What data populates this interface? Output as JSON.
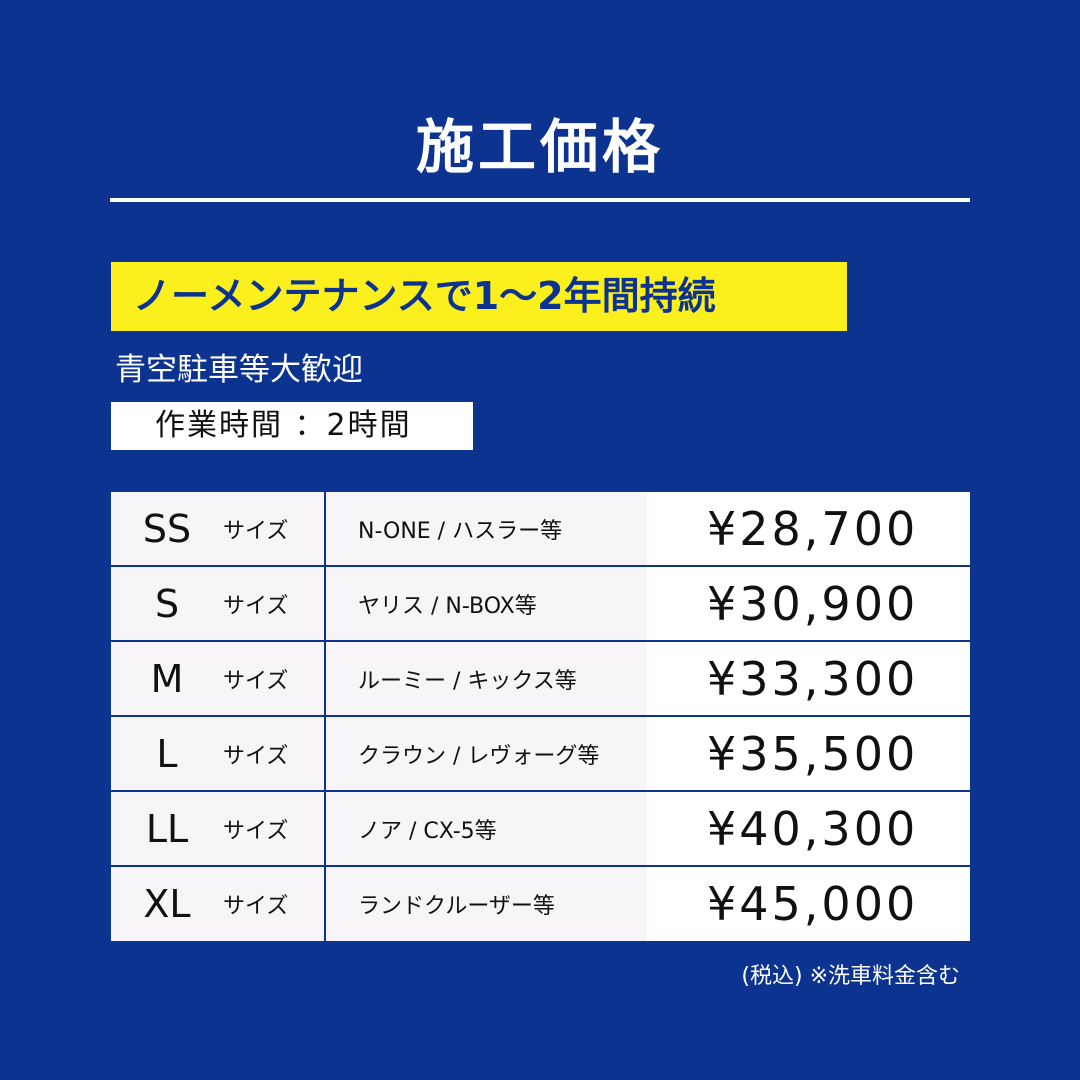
{
  "title": "施工価格",
  "banner": "ノーメンテナンスで1～2年間持続",
  "subtitle": "青空駐車等大歓迎",
  "work_time": "作業時間 ：2時間",
  "rows": [
    {
      "size": "SS",
      "label": "サイズ",
      "models": "N-ONE / ハスラー等",
      "price": "¥28,700"
    },
    {
      "size": "S",
      "label": "サイズ",
      "models": "ヤリス / N-BOX等",
      "price": "¥30,900"
    },
    {
      "size": "M",
      "label": "サイズ",
      "models": "ルーミー / キックス等",
      "price": "¥33,300"
    },
    {
      "size": "L",
      "label": "サイズ",
      "models": "クラウン / レヴォーグ等",
      "price": "¥35,500"
    },
    {
      "size": "LL",
      "label": "サイズ",
      "models": "ノア / CX-5等",
      "price": "¥40,300"
    },
    {
      "size": "XL",
      "label": "サイズ",
      "models": "ランドクルーザー等",
      "price": "¥45,000"
    }
  ],
  "note": "(税込) ※洗車料金含む",
  "colors": {
    "background": "#0c338f",
    "banner": "#fbef1e"
  }
}
